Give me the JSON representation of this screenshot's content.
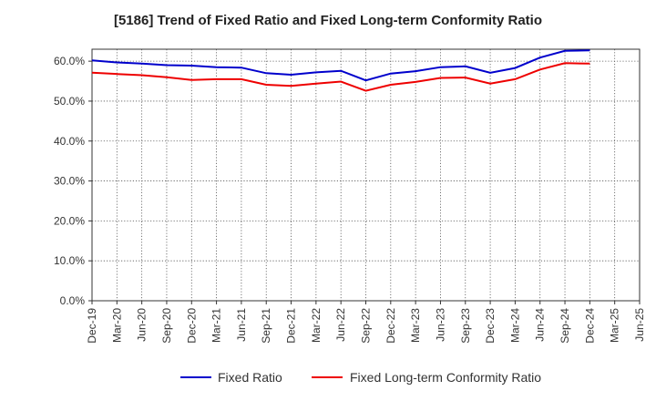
{
  "chart_data": {
    "type": "line",
    "title": "[5186]  Trend of Fixed Ratio and Fixed Long-term Conformity Ratio",
    "xlabel": "",
    "ylabel": "",
    "categories": [
      "Dec-19",
      "Mar-20",
      "Jun-20",
      "Sep-20",
      "Dec-20",
      "Mar-21",
      "Jun-21",
      "Sep-21",
      "Dec-21",
      "Mar-22",
      "Jun-22",
      "Sep-22",
      "Dec-22",
      "Mar-23",
      "Jun-23",
      "Sep-23",
      "Dec-23",
      "Mar-24",
      "Jun-24",
      "Sep-24",
      "Dec-24",
      "Mar-25"
    ],
    "x_tick_labels": [
      "Dec-19",
      "Mar-20",
      "Jun-20",
      "Sep-20",
      "Dec-20",
      "Mar-21",
      "Jun-21",
      "Sep-21",
      "Dec-21",
      "Mar-22",
      "Jun-22",
      "Sep-22",
      "Dec-22",
      "Mar-23",
      "Jun-23",
      "Sep-23",
      "Dec-23",
      "Mar-24",
      "Jun-24",
      "Sep-24",
      "Dec-24",
      "Mar-25",
      "Jun-25"
    ],
    "y_tick_labels": [
      "0.0%",
      "10.0%",
      "20.0%",
      "30.0%",
      "40.0%",
      "50.0%",
      "60.0%"
    ],
    "ylim": [
      0,
      63
    ],
    "grid": true,
    "legend_position": "bottom",
    "series": [
      {
        "name": "Fixed Ratio",
        "color": "#0000cc",
        "values": [
          60.2,
          59.7,
          59.4,
          59.0,
          58.9,
          58.5,
          58.4,
          57.0,
          56.6,
          57.2,
          57.6,
          55.2,
          56.9,
          57.5,
          58.5,
          58.7,
          57.1,
          58.3,
          60.9,
          62.6,
          62.7,
          null
        ]
      },
      {
        "name": "Fixed Long-term Conformity Ratio",
        "color": "#ee0000",
        "values": [
          57.1,
          56.8,
          56.5,
          56.0,
          55.3,
          55.5,
          55.5,
          54.1,
          53.8,
          54.4,
          54.9,
          52.6,
          54.1,
          54.8,
          55.8,
          55.9,
          54.4,
          55.5,
          57.9,
          59.5,
          59.4,
          null
        ]
      }
    ]
  }
}
